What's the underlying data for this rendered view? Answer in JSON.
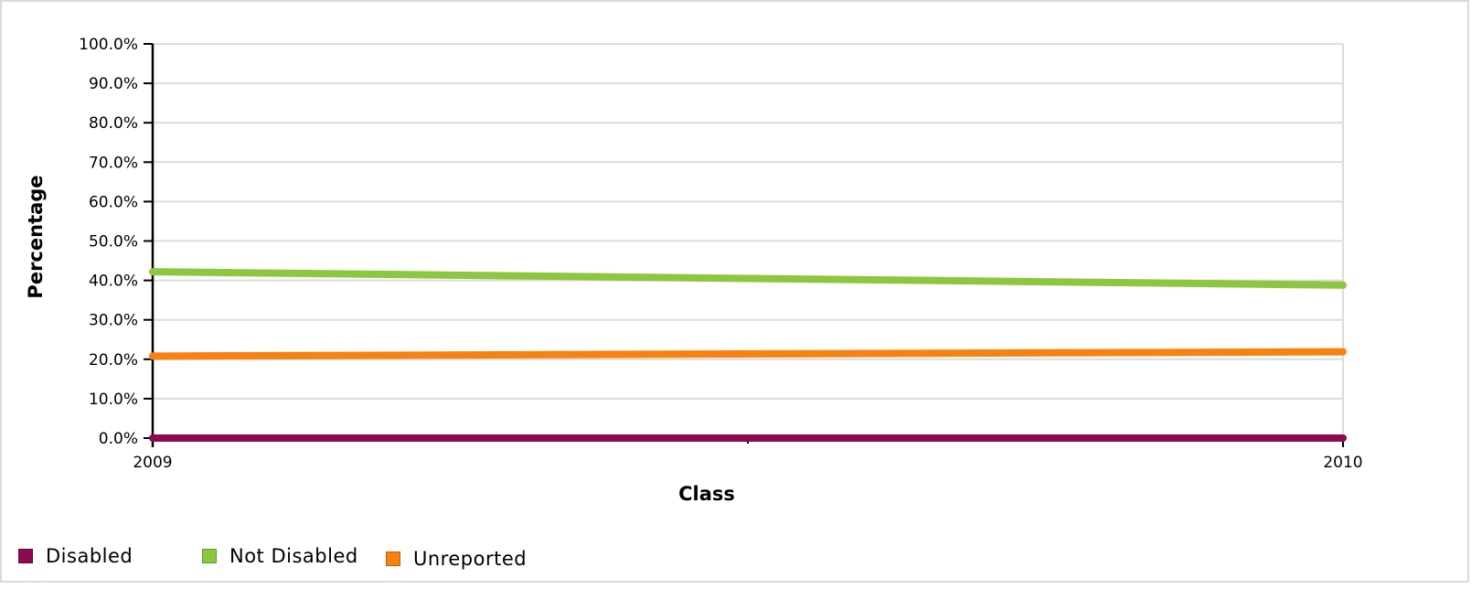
{
  "chart_data": {
    "type": "line",
    "title": "",
    "xlabel": "Class",
    "ylabel": "Percentage",
    "x": [
      "2009",
      "2010"
    ],
    "ylim": [
      0,
      100
    ],
    "yticks": [
      "0.0%",
      "10.0%",
      "20.0%",
      "30.0%",
      "40.0%",
      "50.0%",
      "60.0%",
      "70.0%",
      "80.0%",
      "90.0%",
      "100.0%"
    ],
    "grid": true,
    "legend_position": "bottom-left",
    "series": [
      {
        "name": "Disabled",
        "color": "#8b0a50",
        "values": [
          0.0,
          0.0
        ]
      },
      {
        "name": "Not Disabled",
        "color": "#8dc63f",
        "values": [
          42.2,
          38.8
        ]
      },
      {
        "name": "Unreported",
        "color": "#f7820f",
        "values": [
          20.8,
          21.9
        ]
      }
    ]
  }
}
